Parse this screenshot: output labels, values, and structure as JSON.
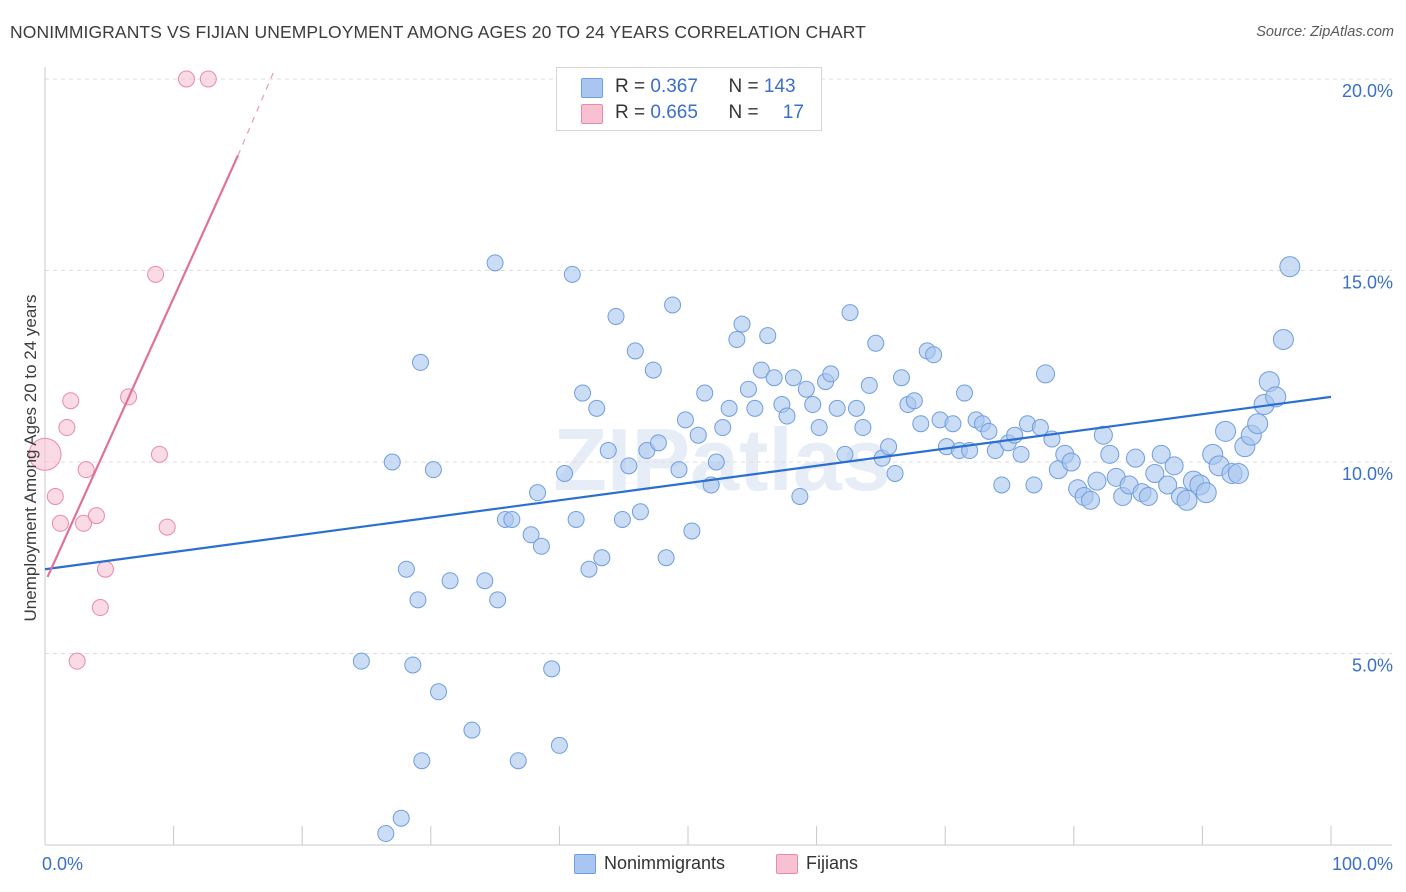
{
  "title": "NONIMMIGRANTS VS FIJIAN UNEMPLOYMENT AMONG AGES 20 TO 24 YEARS CORRELATION CHART",
  "source": "Source: ZipAtlas.com",
  "watermark": "ZIPatlas",
  "legend": {
    "rows": [
      {
        "r_label": "R =",
        "r_value": "0.367",
        "n_label": "N =",
        "n_value": "143",
        "color": "#a8c6ef",
        "border": "#6f9ee0"
      },
      {
        "r_label": "R =",
        "r_value": "0.665",
        "n_label": "N =",
        "n_value": "17",
        "color": "#f7c1d2",
        "border": "#e98aaa"
      }
    ]
  },
  "bottom_legend": [
    {
      "label": "Nonimmigrants",
      "color": "#a8c6ef",
      "border": "#6f9ee0"
    },
    {
      "label": "Fijians",
      "color": "#f7c1d2",
      "border": "#e98aaa"
    }
  ],
  "chart_data": {
    "type": "scatter",
    "title": "NONIMMIGRANTS VS FIJIAN UNEMPLOYMENT AMONG AGES 20 TO 24 YEARS CORRELATION CHART",
    "xlabel": "",
    "ylabel": "Unemployment Among Ages 20 to 24 years",
    "xlim": [
      0,
      100
    ],
    "ylim": [
      0,
      20.5
    ],
    "x_tick_labels": [
      "0.0%",
      "100.0%"
    ],
    "y_ticks": [
      5,
      10,
      15,
      20
    ],
    "y_tick_labels": [
      "5.0%",
      "10.0%",
      "15.0%",
      "20.0%"
    ],
    "grid": "horizontal dashed",
    "legend_position": "top-center",
    "series": [
      {
        "name": "Nonimmigrants",
        "color": "#a8c6ef",
        "stroke": "#6f9ee0",
        "trend": {
          "x": [
            0,
            100
          ],
          "y": [
            7.2,
            11.7
          ],
          "color": "#2a6fd0"
        },
        "points": [
          [
            24.6,
            4.8,
            8
          ],
          [
            27.0,
            10.0,
            8
          ],
          [
            28.1,
            7.2,
            8
          ],
          [
            28.6,
            4.7,
            8
          ],
          [
            29.0,
            6.4,
            8
          ],
          [
            26.5,
            0.3,
            8
          ],
          [
            27.7,
            0.7,
            8
          ],
          [
            29.3,
            2.2,
            8
          ],
          [
            29.2,
            12.6,
            8
          ],
          [
            30.2,
            9.8,
            8
          ],
          [
            30.6,
            4.0,
            8
          ],
          [
            31.5,
            6.9,
            8
          ],
          [
            33.2,
            3.0,
            8
          ],
          [
            34.2,
            6.9,
            8
          ],
          [
            35.2,
            6.4,
            8
          ],
          [
            35.0,
            15.2,
            8
          ],
          [
            35.8,
            8.5,
            8
          ],
          [
            36.3,
            8.5,
            8
          ],
          [
            36.8,
            2.2,
            8
          ],
          [
            37.8,
            8.1,
            8
          ],
          [
            38.3,
            9.2,
            8
          ],
          [
            38.6,
            7.8,
            8
          ],
          [
            39.4,
            4.6,
            8
          ],
          [
            40.0,
            2.6,
            8
          ],
          [
            40.4,
            9.7,
            8
          ],
          [
            41.0,
            14.9,
            8
          ],
          [
            41.3,
            8.5,
            8
          ],
          [
            41.8,
            11.8,
            8
          ],
          [
            42.3,
            7.2,
            8
          ],
          [
            42.9,
            11.4,
            8
          ],
          [
            43.3,
            7.5,
            8
          ],
          [
            43.8,
            10.3,
            8
          ],
          [
            44.4,
            13.8,
            8
          ],
          [
            44.9,
            8.5,
            8
          ],
          [
            45.4,
            9.9,
            8
          ],
          [
            45.9,
            12.9,
            8
          ],
          [
            46.3,
            8.7,
            8
          ],
          [
            46.8,
            10.3,
            8
          ],
          [
            47.3,
            12.4,
            8
          ],
          [
            47.7,
            10.5,
            8
          ],
          [
            48.3,
            7.5,
            8
          ],
          [
            48.8,
            14.1,
            8
          ],
          [
            49.3,
            9.8,
            8
          ],
          [
            49.8,
            11.1,
            8
          ],
          [
            50.3,
            8.2,
            8
          ],
          [
            50.8,
            10.7,
            8
          ],
          [
            51.3,
            11.8,
            8
          ],
          [
            51.8,
            9.4,
            8
          ],
          [
            52.2,
            10.0,
            8
          ],
          [
            52.7,
            10.9,
            8
          ],
          [
            53.2,
            11.4,
            8
          ],
          [
            53.8,
            13.2,
            8
          ],
          [
            54.2,
            13.6,
            8
          ],
          [
            54.7,
            11.9,
            8
          ],
          [
            55.2,
            11.4,
            8
          ],
          [
            55.7,
            12.4,
            8
          ],
          [
            56.2,
            13.3,
            8
          ],
          [
            56.7,
            12.2,
            8
          ],
          [
            57.3,
            11.5,
            8
          ],
          [
            57.7,
            11.2,
            8
          ],
          [
            58.2,
            12.2,
            8
          ],
          [
            58.7,
            9.1,
            8
          ],
          [
            59.2,
            11.9,
            8
          ],
          [
            59.7,
            11.5,
            8
          ],
          [
            60.2,
            10.9,
            8
          ],
          [
            60.7,
            12.1,
            8
          ],
          [
            61.1,
            12.3,
            8
          ],
          [
            61.6,
            11.4,
            8
          ],
          [
            62.2,
            10.2,
            8
          ],
          [
            62.6,
            13.9,
            8
          ],
          [
            63.1,
            11.4,
            8
          ],
          [
            63.6,
            10.9,
            8
          ],
          [
            64.1,
            12.0,
            8
          ],
          [
            64.6,
            13.1,
            8
          ],
          [
            65.1,
            10.1,
            8
          ],
          [
            65.6,
            10.4,
            8
          ],
          [
            66.1,
            9.7,
            8
          ],
          [
            66.6,
            12.2,
            8
          ],
          [
            67.1,
            11.5,
            8
          ],
          [
            67.6,
            11.6,
            8
          ],
          [
            68.1,
            11.0,
            8
          ],
          [
            68.6,
            12.9,
            8
          ],
          [
            69.1,
            12.8,
            8
          ],
          [
            69.6,
            11.1,
            8
          ],
          [
            70.1,
            10.4,
            8
          ],
          [
            70.6,
            11.0,
            8
          ],
          [
            71.1,
            10.3,
            8
          ],
          [
            71.5,
            11.8,
            8
          ],
          [
            71.9,
            10.3,
            8
          ],
          [
            72.4,
            11.1,
            8
          ],
          [
            72.9,
            11.0,
            8
          ],
          [
            73.4,
            10.8,
            8
          ],
          [
            73.9,
            10.3,
            8
          ],
          [
            74.4,
            9.4,
            8
          ],
          [
            74.9,
            10.5,
            8
          ],
          [
            75.4,
            10.7,
            8
          ],
          [
            75.9,
            10.2,
            8
          ],
          [
            76.4,
            11.0,
            8
          ],
          [
            76.9,
            9.4,
            8
          ],
          [
            77.4,
            10.9,
            8
          ],
          [
            77.8,
            12.3,
            9
          ],
          [
            78.3,
            10.6,
            8
          ],
          [
            78.8,
            9.8,
            9
          ],
          [
            79.3,
            10.2,
            9
          ],
          [
            79.8,
            10.0,
            9
          ],
          [
            80.3,
            9.3,
            9
          ],
          [
            80.8,
            9.1,
            9
          ],
          [
            81.3,
            9.0,
            9
          ],
          [
            81.8,
            9.5,
            9
          ],
          [
            82.3,
            10.7,
            9
          ],
          [
            82.8,
            10.2,
            9
          ],
          [
            83.3,
            9.6,
            9
          ],
          [
            83.8,
            9.1,
            9
          ],
          [
            84.3,
            9.4,
            9
          ],
          [
            84.8,
            10.1,
            9
          ],
          [
            85.3,
            9.2,
            9
          ],
          [
            85.8,
            9.1,
            9
          ],
          [
            86.3,
            9.7,
            9
          ],
          [
            86.8,
            10.2,
            9
          ],
          [
            87.3,
            9.4,
            9
          ],
          [
            87.8,
            9.9,
            9
          ],
          [
            88.3,
            9.1,
            9
          ],
          [
            88.8,
            9.0,
            10
          ],
          [
            89.3,
            9.5,
            10
          ],
          [
            89.8,
            9.4,
            10
          ],
          [
            90.3,
            9.2,
            10
          ],
          [
            90.8,
            10.2,
            10
          ],
          [
            91.3,
            9.9,
            10
          ],
          [
            91.8,
            10.8,
            10
          ],
          [
            92.3,
            9.7,
            10
          ],
          [
            92.8,
            9.7,
            10
          ],
          [
            93.3,
            10.4,
            10
          ],
          [
            93.8,
            10.7,
            10
          ],
          [
            94.3,
            11.0,
            10
          ],
          [
            94.8,
            11.5,
            10
          ],
          [
            95.2,
            12.1,
            10
          ],
          [
            95.7,
            11.7,
            10
          ],
          [
            96.3,
            13.2,
            10
          ],
          [
            96.8,
            15.1,
            10
          ]
        ]
      },
      {
        "name": "Fijians",
        "color": "#f7c1d2",
        "stroke": "#e98aaa",
        "trend": {
          "x": [
            0.2,
            15.0
          ],
          "y": [
            7.0,
            18.0
          ],
          "dashed_to": [
            17.8,
            20.2
          ],
          "color": "#e0719a"
        },
        "points": [
          [
            0.0,
            10.2,
            16
          ],
          [
            0.8,
            9.1,
            8
          ],
          [
            1.2,
            8.4,
            8
          ],
          [
            1.7,
            10.9,
            8
          ],
          [
            2.0,
            11.6,
            8
          ],
          [
            2.5,
            4.8,
            8
          ],
          [
            3.0,
            8.4,
            8
          ],
          [
            3.2,
            9.8,
            8
          ],
          [
            4.0,
            8.6,
            8
          ],
          [
            4.3,
            6.2,
            8
          ],
          [
            4.7,
            7.2,
            8
          ],
          [
            6.5,
            11.7,
            8
          ],
          [
            8.6,
            14.9,
            8
          ],
          [
            8.9,
            10.2,
            8
          ],
          [
            9.5,
            8.3,
            8
          ],
          [
            11.0,
            20.0,
            8
          ],
          [
            12.7,
            20.0,
            8
          ]
        ]
      }
    ]
  }
}
